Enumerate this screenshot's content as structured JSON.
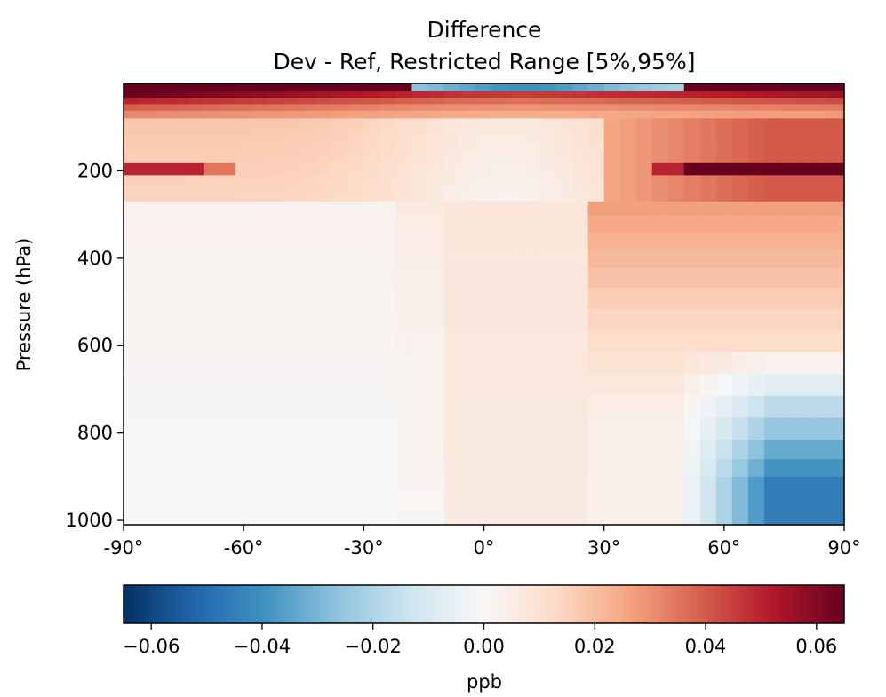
{
  "chart_data": {
    "type": "heatmap",
    "title": "Difference",
    "subtitle": "Dev - Ref, Restricted Range [5%,95%]",
    "xlabel": "",
    "ylabel": "Pressure (hPa)",
    "xlim": [
      -90,
      90
    ],
    "ylim": [
      1010,
      0
    ],
    "x_ticks": [
      -90,
      -60,
      -30,
      0,
      30,
      60,
      90
    ],
    "x_tick_labels": [
      "-90°",
      "-60°",
      "-30°",
      "0°",
      "30°",
      "60°",
      "90°"
    ],
    "y_ticks": [
      200,
      400,
      600,
      800,
      1000
    ],
    "y_tick_labels": [
      "200",
      "400",
      "600",
      "800",
      "1000"
    ],
    "colormap": "RdBu_r",
    "colorbar": {
      "label": "ppb",
      "range": [
        -0.065,
        0.065
      ],
      "ticks": [
        -0.06,
        -0.04,
        -0.02,
        0.0,
        0.02,
        0.04,
        0.06
      ],
      "tick_labels": [
        "−0.06",
        "−0.04",
        "−0.02",
        "0.00",
        "0.02",
        "0.04",
        "0.06"
      ]
    },
    "grid": false,
    "lat_bins": 45,
    "pressure_levels": [
      10,
      25,
      40,
      55,
      70,
      90,
      110,
      130,
      150,
      170,
      195,
      225,
      255,
      285,
      320,
      360,
      400,
      445,
      490,
      540,
      590,
      640,
      690,
      740,
      790,
      840,
      880,
      920,
      960,
      1000
    ]
  }
}
